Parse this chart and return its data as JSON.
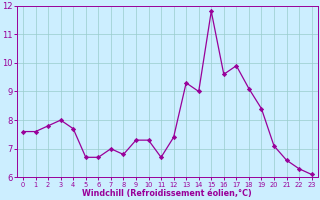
{
  "x": [
    0,
    1,
    2,
    3,
    4,
    5,
    6,
    7,
    8,
    9,
    10,
    11,
    12,
    13,
    14,
    15,
    16,
    17,
    18,
    19,
    20,
    21,
    22,
    23
  ],
  "y": [
    7.6,
    7.6,
    7.8,
    8.0,
    7.7,
    6.7,
    6.7,
    7.0,
    6.8,
    7.3,
    7.3,
    6.7,
    7.4,
    9.3,
    9.0,
    11.8,
    9.6,
    9.9,
    9.1,
    8.4,
    7.1,
    6.6,
    6.3,
    6.1
  ],
  "line_color": "#990099",
  "marker": "D",
  "marker_size": 2.2,
  "bg_color": "#cceeff",
  "grid_color": "#99cccc",
  "ylim": [
    6,
    12
  ],
  "xlim_min": -0.5,
  "xlim_max": 23.5,
  "yticks": [
    6,
    7,
    8,
    9,
    10,
    11,
    12
  ],
  "xticks": [
    0,
    1,
    2,
    3,
    4,
    5,
    6,
    7,
    8,
    9,
    10,
    11,
    12,
    13,
    14,
    15,
    16,
    17,
    18,
    19,
    20,
    21,
    22,
    23
  ],
  "xlabel": "Windchill (Refroidissement éolien,°C)",
  "xlabel_color": "#990099",
  "tick_color": "#990099",
  "axis_color": "#990099",
  "tick_fontsize_x": 4.8,
  "tick_fontsize_y": 6.0,
  "xlabel_fontsize": 5.8
}
